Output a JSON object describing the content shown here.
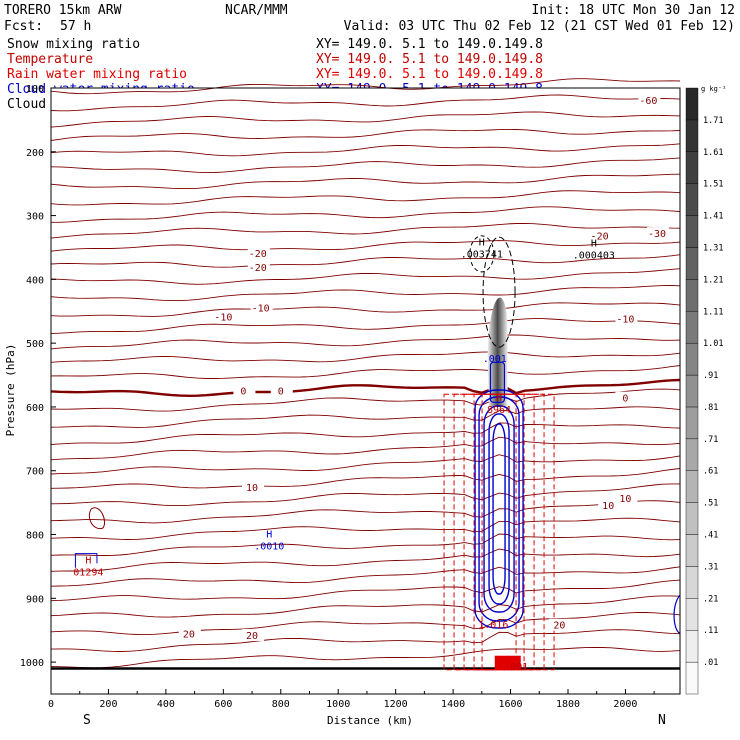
{
  "header": {
    "model": "TORERO  15km ARW",
    "org": "NCAR/MMM",
    "init": "Init: 18 UTC Mon 30 Jan 12",
    "fcst_label": "Fcst:",
    "fcst_value": "57 h",
    "valid": "Valid: 03 UTC Thu 02 Feb 12 (21 CST Wed 01 Feb 12)"
  },
  "legend": [
    {
      "name": "Snow mixing ratio",
      "xy": "XY= 149.0.  5.1 to 149.0.149.8",
      "color": "#000000"
    },
    {
      "name": "Temperature",
      "xy": "XY= 149.0.  5.1 to 149.0.149.8",
      "color": "#c00000"
    },
    {
      "name": "Rain water mixing ratio",
      "xy": "XY= 149.0.  5.1 to 149.0.149.8",
      "color": "#e00000"
    },
    {
      "name": "Cloud water mixing ratio",
      "xy": "XY= 149.0.  5.1 to 149.0.149.8",
      "color": "#0000cc"
    },
    {
      "name": "Cloud ice mixing ratio",
      "xy": "XY= 149.0.  5.1 to 149.0.149.8",
      "color": "#000000"
    }
  ],
  "chart_data": {
    "type": "cross-section",
    "title": "Vertical cross section",
    "xlabel": "Distance (km)",
    "ylabel": "Pressure (hPa)",
    "xlim": [
      0,
      2190
    ],
    "ylim": [
      1050,
      100
    ],
    "x_ticks": [
      0,
      200,
      400,
      600,
      800,
      1000,
      1200,
      1400,
      1600,
      1800,
      2000
    ],
    "y_ticks": [
      200,
      300,
      400,
      500,
      600,
      700,
      800,
      900,
      1000
    ],
    "y_top_label": "100",
    "x_left_label": "S",
    "x_right_label": "N",
    "colorbar": {
      "units": "g kg⁻¹",
      "levels": [
        ".01",
        ".11",
        ".21",
        ".31",
        ".41",
        ".51",
        ".61",
        ".71",
        ".81",
        ".91",
        "1.01",
        "1.11",
        "1.21",
        "1.31",
        "1.41",
        "1.51",
        "1.61",
        "1.71"
      ]
    },
    "temperature_isotherms": [
      {
        "value": "-60",
        "pressure_at_label": 120
      },
      {
        "value": "-30",
        "pressure_at_label": 329
      },
      {
        "value": "-20",
        "pressure_at_label": 360
      },
      {
        "value": "-10",
        "pressure_at_label": 460
      },
      {
        "value": "0",
        "pressure_at_label": 576
      },
      {
        "value": "10",
        "pressure_at_label": 744
      },
      {
        "value": "20",
        "pressure_at_label": 957
      }
    ],
    "annotations": [
      {
        "label": "H",
        "value": ".003741",
        "x_km": 1500,
        "p_hPa": 356,
        "color": "#000000"
      },
      {
        "label": "H",
        "value": ".000403",
        "x_km": 1890,
        "p_hPa": 358,
        "color": "#000000"
      },
      {
        "label": "",
        "value": ".001",
        "x_km": 1545,
        "p_hPa": 520,
        "color": "#0000cc"
      },
      {
        "label": "H",
        "value": "8964",
        "x_km": 1560,
        "p_hPa": 600,
        "color": "#c00000"
      },
      {
        "label": "H",
        "value": ".0010",
        "x_km": 760,
        "p_hPa": 814,
        "color": "#0000cc"
      },
      {
        "label": "H",
        "value": "01294",
        "x_km": 130,
        "p_hPa": 855,
        "color": "#c00000"
      },
      {
        "label": "",
        "value": "1.016",
        "x_km": 1540,
        "p_hPa": 937,
        "color": "#c00000"
      },
      {
        "label": "",
        "value": ".001",
        "x_km": 1620,
        "p_hPa": 1003,
        "color": "#c00000"
      }
    ],
    "extra_labels": [
      {
        "value": "-20",
        "x_km": 720,
        "p_hPa": 382,
        "color": "#800000"
      },
      {
        "value": "-10",
        "x_km": 730,
        "p_hPa": 446,
        "color": "#800000"
      },
      {
        "value": "-20",
        "x_km": 1910,
        "p_hPa": 333,
        "color": "#800000"
      },
      {
        "value": "-10",
        "x_km": 2000,
        "p_hPa": 463,
        "color": "#800000"
      },
      {
        "value": "0",
        "x_km": 800,
        "p_hPa": 576,
        "color": "#800000"
      },
      {
        "value": "0",
        "x_km": 2000,
        "p_hPa": 587,
        "color": "#800000"
      },
      {
        "value": "10",
        "x_km": 700,
        "p_hPa": 727,
        "color": "#800000"
      },
      {
        "value": "10",
        "x_km": 1940,
        "p_hPa": 755,
        "color": "#800000"
      },
      {
        "value": "20",
        "x_km": 700,
        "p_hPa": 959,
        "color": "#800000"
      },
      {
        "value": "20",
        "x_km": 1770,
        "p_hPa": 943,
        "color": "#800000"
      }
    ]
  }
}
